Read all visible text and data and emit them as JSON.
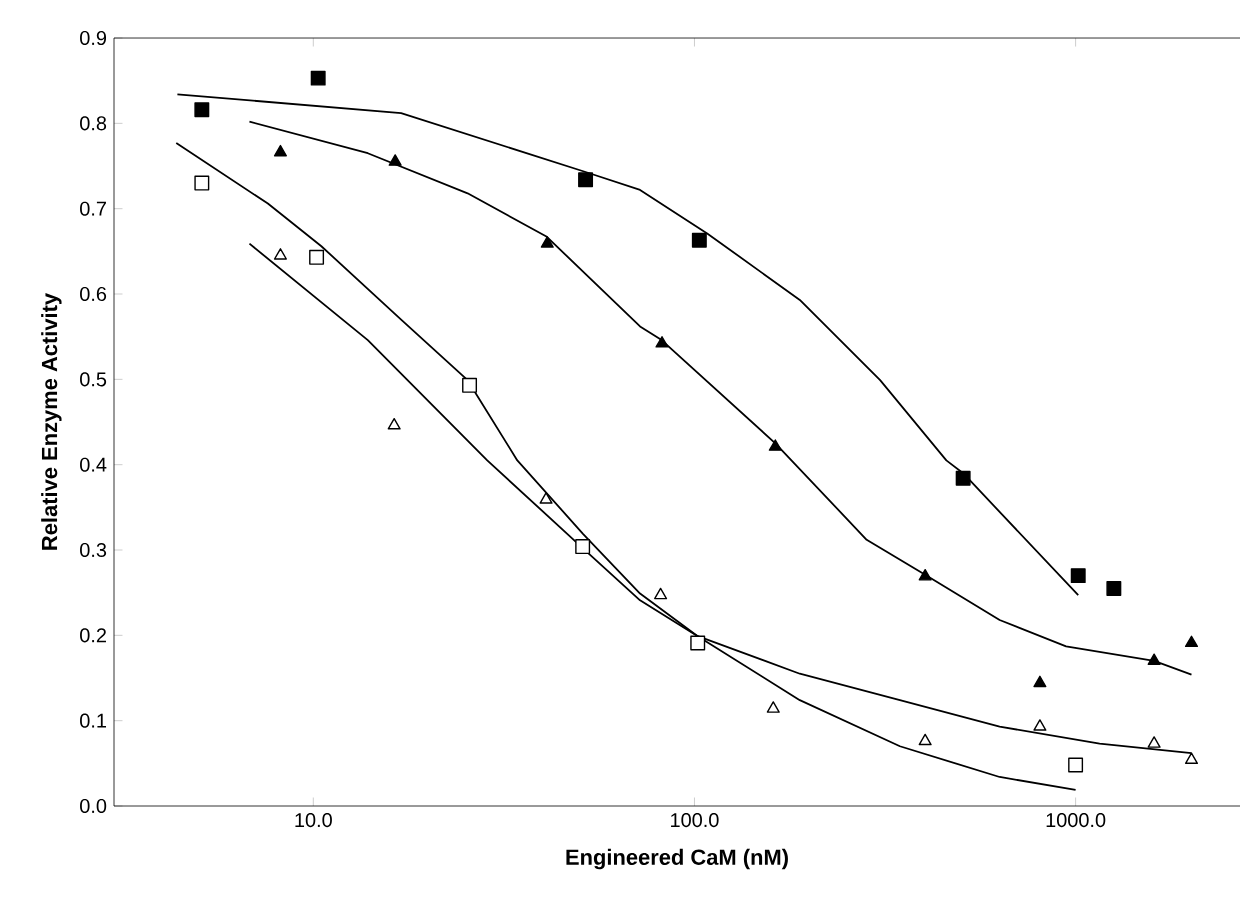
{
  "chart_data": {
    "type": "scatter",
    "xlabel": "Engineered CaM (nM)",
    "ylabel": "Relative Enzyme Activity",
    "log": "x",
    "xlim": [
      3,
      2700
    ],
    "ylim": [
      0,
      0.9
    ],
    "xticks": [
      {
        "value": 10,
        "label": "10.0"
      },
      {
        "value": 100,
        "label": "100.0"
      },
      {
        "value": 1000,
        "label": "1000.0"
      }
    ],
    "yticks": [
      {
        "value": 0,
        "label": "0.0"
      },
      {
        "value": 0.1,
        "label": "0.1"
      },
      {
        "value": 0.2,
        "label": "0.2"
      },
      {
        "value": 0.3,
        "label": "0.3"
      },
      {
        "value": 0.4,
        "label": "0.4"
      },
      {
        "value": 0.5,
        "label": "0.5"
      },
      {
        "value": 0.6,
        "label": "0.6"
      },
      {
        "value": 0.7,
        "label": "0.7"
      },
      {
        "value": 0.8,
        "label": "0.8"
      },
      {
        "value": 0.9,
        "label": "0.9"
      }
    ],
    "series": [
      {
        "type": "line",
        "color": "#000000",
        "marker": "none",
        "line_style": "solid",
        "x": [
          4.4,
          17,
          51.8,
          72,
          108,
          189,
          307,
          458,
          507,
          1016
        ],
        "values": [
          0.834,
          0.812,
          0.743,
          0.722,
          0.671,
          0.593,
          0.499,
          0.405,
          0.39,
          0.247
        ]
      },
      {
        "type": "line",
        "color": "#000000",
        "marker": "none",
        "line_style": "solid",
        "x": [
          6.8,
          13.9,
          25.4,
          41,
          72,
          82,
          163,
          283,
          403,
          632,
          944,
          1607,
          2014
        ],
        "values": [
          0.802,
          0.765,
          0.718,
          0.667,
          0.562,
          0.546,
          0.425,
          0.312,
          0.271,
          0.218,
          0.187,
          0.17,
          0.154
        ]
      },
      {
        "type": "line",
        "color": "#000000",
        "marker": "none",
        "line_style": "solid",
        "x": [
          4.37,
          7.6,
          10.5,
          17,
          25.4,
          34.3,
          51,
          72,
          102,
          189,
          346,
          632,
          1000
        ],
        "values": [
          0.777,
          0.706,
          0.656,
          0.57,
          0.499,
          0.405,
          0.319,
          0.249,
          0.199,
          0.124,
          0.07,
          0.034,
          0.019
        ]
      },
      {
        "type": "line",
        "color": "#000000",
        "marker": "none",
        "line_style": "solid",
        "x": [
          6.8,
          13.9,
          28.6,
          51,
          72,
          102,
          189,
          346,
          632,
          1156,
          2014
        ],
        "values": [
          0.659,
          0.546,
          0.405,
          0.302,
          0.241,
          0.199,
          0.155,
          0.124,
          0.093,
          0.073,
          0.062
        ]
      },
      {
        "color": "#000000",
        "marker": "square",
        "x": [
          5.1,
          10.3,
          51.8,
          103,
          507,
          1016,
          1260
        ],
        "values": [
          0.816,
          0.853,
          0.734,
          0.663,
          0.384,
          0.27,
          0.255
        ]
      },
      {
        "color": "#000000",
        "marker": "triangle",
        "x": [
          8.2,
          16.4,
          41.1,
          82.2,
          163,
          403,
          806,
          1607,
          2014
        ],
        "values": [
          0.766,
          0.755,
          0.659,
          0.542,
          0.421,
          0.269,
          0.144,
          0.17,
          0.191
        ]
      },
      {
        "color": "#ffffff",
        "marker": "square",
        "x": [
          5.1,
          10.2,
          25.7,
          50.9,
          102,
          1000
        ],
        "values": [
          0.73,
          0.643,
          0.493,
          0.304,
          0.191,
          0.048
        ]
      },
      {
        "color": "#ffffff",
        "marker": "triangle",
        "x": [
          8.2,
          16.3,
          40.8,
          81.5,
          161,
          403,
          806,
          1607,
          2014
        ],
        "values": [
          0.645,
          0.446,
          0.359,
          0.247,
          0.114,
          0.076,
          0.093,
          0.073,
          0.054
        ]
      }
    ]
  }
}
